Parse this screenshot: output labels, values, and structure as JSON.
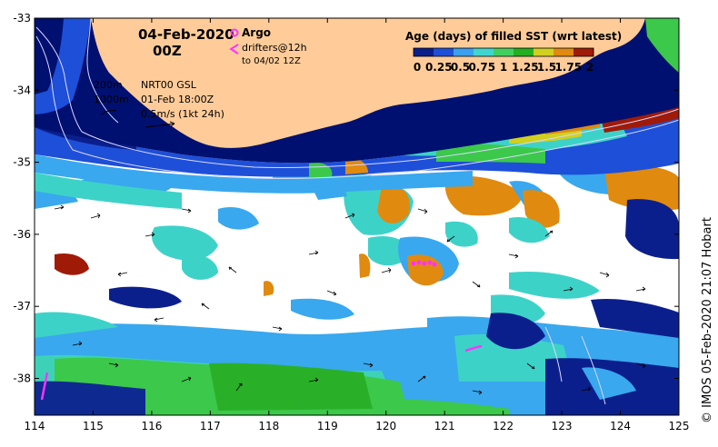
{
  "header": {
    "date": "04-Feb-2020",
    "hour": "00Z"
  },
  "argo_legend": {
    "label": "Argo",
    "symbol_color": "#ff33ff"
  },
  "drifters_legend": {
    "line1": "drifters@12h",
    "line2": "to 04/02 12Z",
    "symbol_color": "#ff33ff"
  },
  "contour_legend": {
    "shallow": "200m",
    "deep": "1000m"
  },
  "current_info": {
    "product": "NRT00 GSL",
    "time": "01-Feb 18:00Z",
    "scale": "0.5m/s (1kt 24h)"
  },
  "colorbar": {
    "title": "Age (days) of filled SST (wrt latest)",
    "tick_labels": [
      "0",
      "0.25",
      "0.5",
      "0.75",
      "1",
      "1.25",
      "1.5",
      "1.75",
      "2"
    ],
    "colors": [
      "#0b1f8c",
      "#1e4fd8",
      "#3aa0f0",
      "#3fd6d0",
      "#40d060",
      "#22b020",
      "#d0d020",
      "#e08a10",
      "#a01a08"
    ]
  },
  "axes": {
    "x_ticks": [
      "114",
      "115",
      "116",
      "117",
      "118",
      "119",
      "120",
      "121",
      "122",
      "123",
      "124",
      "125"
    ],
    "y_ticks": [
      "-33",
      "-34",
      "-35",
      "-36",
      "-37",
      "-38"
    ]
  },
  "credit": "© IMOS 05-Feb-2020 21:07 Hobart",
  "colors": {
    "land": "#ffcc99",
    "coast_dark": "#001070",
    "no_data": "#ffffff"
  }
}
